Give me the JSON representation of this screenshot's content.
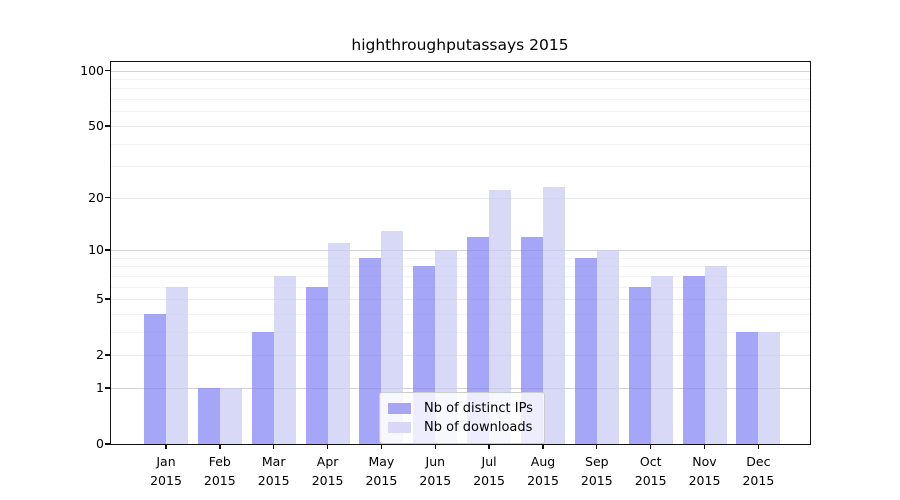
{
  "chart_data": {
    "type": "bar",
    "title": "highthroughputassays 2015",
    "categories": [
      "Jan",
      "Feb",
      "Mar",
      "Apr",
      "May",
      "Jun",
      "Jul",
      "Aug",
      "Sep",
      "Oct",
      "Nov",
      "Dec"
    ],
    "year_label": "2015",
    "series": [
      {
        "name": "Nb of distinct IPs",
        "color": "rgba(132,132,245,0.72)",
        "legend_color": "#a6a6f5",
        "values": [
          4,
          1,
          3,
          6,
          9,
          8,
          12,
          12,
          9,
          6,
          7,
          3
        ]
      },
      {
        "name": "Nb of downloads",
        "color": "rgba(201,201,244,0.72)",
        "legend_color": "#d8d8f6",
        "values": [
          6,
          1,
          7,
          11,
          13,
          10,
          22,
          23,
          10,
          7,
          8,
          3
        ]
      }
    ],
    "yscale": "log1p",
    "ylim": [
      0,
      102
    ],
    "xlabel": "",
    "ylabel": "",
    "y_ticks": [
      {
        "value": 100,
        "label": "100"
      },
      {
        "value": 50,
        "label": "50"
      },
      {
        "value": 20,
        "label": "20"
      },
      {
        "value": 10,
        "label": "10"
      },
      {
        "value": 5,
        "label": "5"
      },
      {
        "value": 2,
        "label": "2"
      },
      {
        "value": 1,
        "label": "1"
      },
      {
        "value": 0,
        "label": "0"
      }
    ],
    "grid": {
      "major_values": [
        1,
        10,
        100
      ],
      "mid_values": [
        2,
        5,
        20,
        50
      ],
      "minor_values": [
        3,
        4,
        6,
        7,
        8,
        9,
        30,
        40,
        60,
        70,
        80,
        90
      ],
      "major_color": "#d2d2d2",
      "mid_color": "#e9e9e9",
      "minor_color": "#f3f3f3"
    },
    "legend": {
      "position": "lower-center-left"
    }
  }
}
